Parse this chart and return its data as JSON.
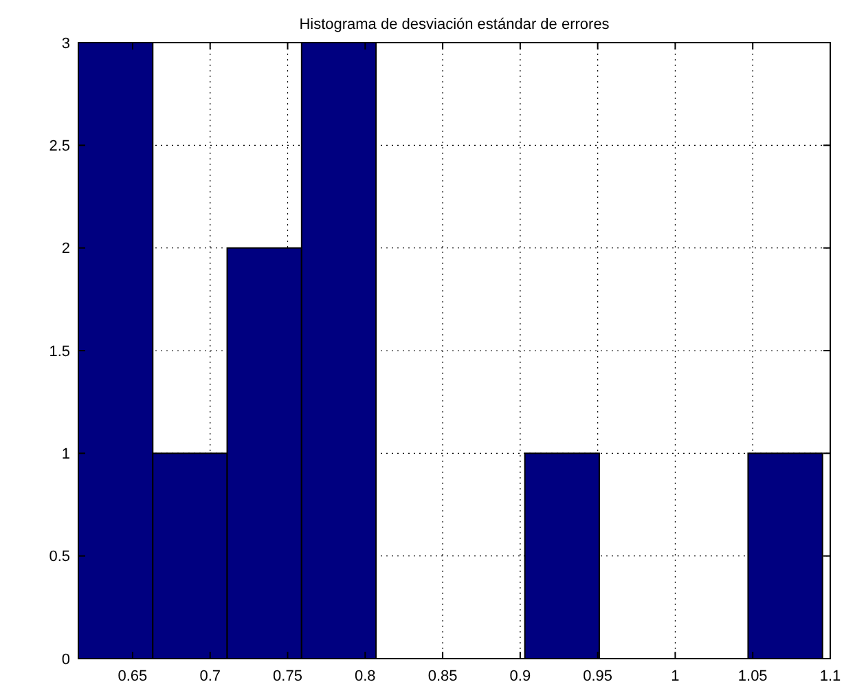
{
  "chart_data": {
    "type": "histogram",
    "title": "Histograma de desviación estándar de errores",
    "bins": [
      0.615,
      0.663,
      0.711,
      0.759,
      0.807,
      0.855,
      0.903,
      0.951,
      0.999,
      1.047,
      1.095
    ],
    "values": [
      3,
      1,
      2,
      3,
      0,
      0,
      1,
      0,
      0,
      1
    ],
    "color": "#000080",
    "xlim": [
      0.615,
      1.1
    ],
    "xticks": [
      0.65,
      0.7,
      0.75,
      0.8,
      0.85,
      0.9,
      0.95,
      1,
      1.05,
      1.1
    ],
    "ylim": [
      0,
      3
    ],
    "yticks": [
      0,
      0.5,
      1,
      1.5,
      2,
      2.5,
      3
    ],
    "grid": true
  }
}
